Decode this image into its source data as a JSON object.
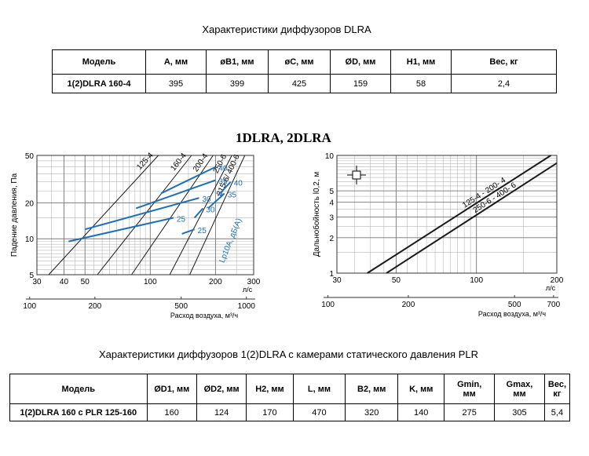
{
  "table1": {
    "title": "Характеристики диффузоров DLRA",
    "headers": [
      "Модель",
      "A, мм",
      "øB1, мм",
      "øC, мм",
      "ØD, мм",
      "H1, мм",
      "Вес, кг"
    ],
    "rows": [
      [
        "1(2)DLRA 160-4",
        "395",
        "399",
        "425",
        "159",
        "58",
        "2,4"
      ]
    ]
  },
  "chart_heading": "1DLRA, 2DLRA",
  "chart_data": [
    {
      "type": "line",
      "ylabel": "Падение давления, Па",
      "x_primary": {
        "unit": "л/с",
        "ticks": [
          "30",
          "40",
          "50",
          "100",
          "200",
          "300"
        ],
        "range": [
          30,
          300
        ],
        "scale": "log"
      },
      "x_secondary": {
        "label": "Расход воздуха, м³/ч",
        "ticks": [
          "100",
          "200",
          "500",
          "1000"
        ]
      },
      "y": {
        "ticks": [
          "5",
          "10",
          "20",
          "50"
        ],
        "range": [
          5,
          50
        ],
        "scale": "log"
      },
      "series": [
        {
          "name": "125-4",
          "points": [
            [
              34,
              5
            ],
            [
              109,
              50
            ]
          ]
        },
        {
          "name": "160-4",
          "points": [
            [
              57,
              5
            ],
            [
              155,
              50
            ]
          ]
        },
        {
          "name": "200-4",
          "points": [
            [
              82,
              5
            ],
            [
              195,
              50
            ]
          ]
        },
        {
          "name": "250-6",
          "points": [
            [
              123,
              5
            ],
            [
              238,
              50
            ]
          ]
        },
        {
          "name": "315-6/ 400-6",
          "points": [
            [
              152,
              5
            ],
            [
              273,
              50
            ]
          ]
        }
      ],
      "noise_label": "Lp10A, дБ(A)",
      "noise_lines": [
        {
          "label": "40",
          "points": [
            [
              112,
              24
            ],
            [
              200,
              40
            ]
          ]
        },
        {
          "label": "35",
          "points": [
            [
              86,
              18
            ],
            [
              200,
              31
            ]
          ]
        },
        {
          "label": "30",
          "points": [
            [
              50,
              12
            ],
            [
              168,
              22
            ]
          ]
        },
        {
          "label": "25",
          "points": [
            [
              42,
              9.5
            ],
            [
              128,
              15
            ]
          ]
        },
        {
          "label": "40",
          "points": [
            [
              205,
              23
            ],
            [
              235,
              30
            ]
          ]
        },
        {
          "label": "35",
          "points": [
            [
              185,
              18
            ],
            [
              220,
              24
            ]
          ]
        },
        {
          "label": "30",
          "points": [
            [
              160,
              15
            ],
            [
              175,
              18
            ]
          ]
        },
        {
          "label": "25",
          "points": [
            [
              140,
              11
            ],
            [
              160,
              12
            ]
          ]
        }
      ]
    },
    {
      "type": "line",
      "ylabel": "Дальнобойность l0,2, м",
      "x_primary": {
        "unit": "л/с",
        "ticks": [
          "30",
          "50",
          "100",
          "200"
        ],
        "range": [
          30,
          200
        ],
        "scale": "log"
      },
      "x_secondary": {
        "label": "Расход воздуха, м³/ч",
        "ticks": [
          "100",
          "200",
          "500",
          "700"
        ]
      },
      "y": {
        "ticks": [
          "1",
          "2",
          "3",
          "4",
          "5",
          "10"
        ],
        "range": [
          1,
          10
        ],
        "scale": "log"
      },
      "series": [
        {
          "name": "125-4 - 200- 4",
          "points": [
            [
              39,
              1
            ],
            [
              190,
              10
            ]
          ]
        },
        {
          "name": "250-6 - 400- 6",
          "points": [
            [
              46,
              1
            ],
            [
              200,
              8.6
            ]
          ]
        }
      ]
    }
  ],
  "table2": {
    "title": "Характеристики диффузоров 1(2)DLRA с камерами статического давления PLR",
    "headers": [
      "Модель",
      "ØD1, мм",
      "ØD2, мм",
      "H2, мм",
      "L, мм",
      "B2, мм",
      "K, мм",
      "Gmin,\nмм",
      "Gmax,\nмм",
      "Вес, кг"
    ],
    "rows": [
      [
        "1(2)DLRA 160 с PLR 125-160",
        "160",
        "124",
        "170",
        "470",
        "320",
        "140",
        "275",
        "305",
        "5,4"
      ]
    ]
  },
  "colors": {
    "grid": "#b8b8b8",
    "line": "#1a1a1a",
    "noise": "#1f6fb6"
  }
}
